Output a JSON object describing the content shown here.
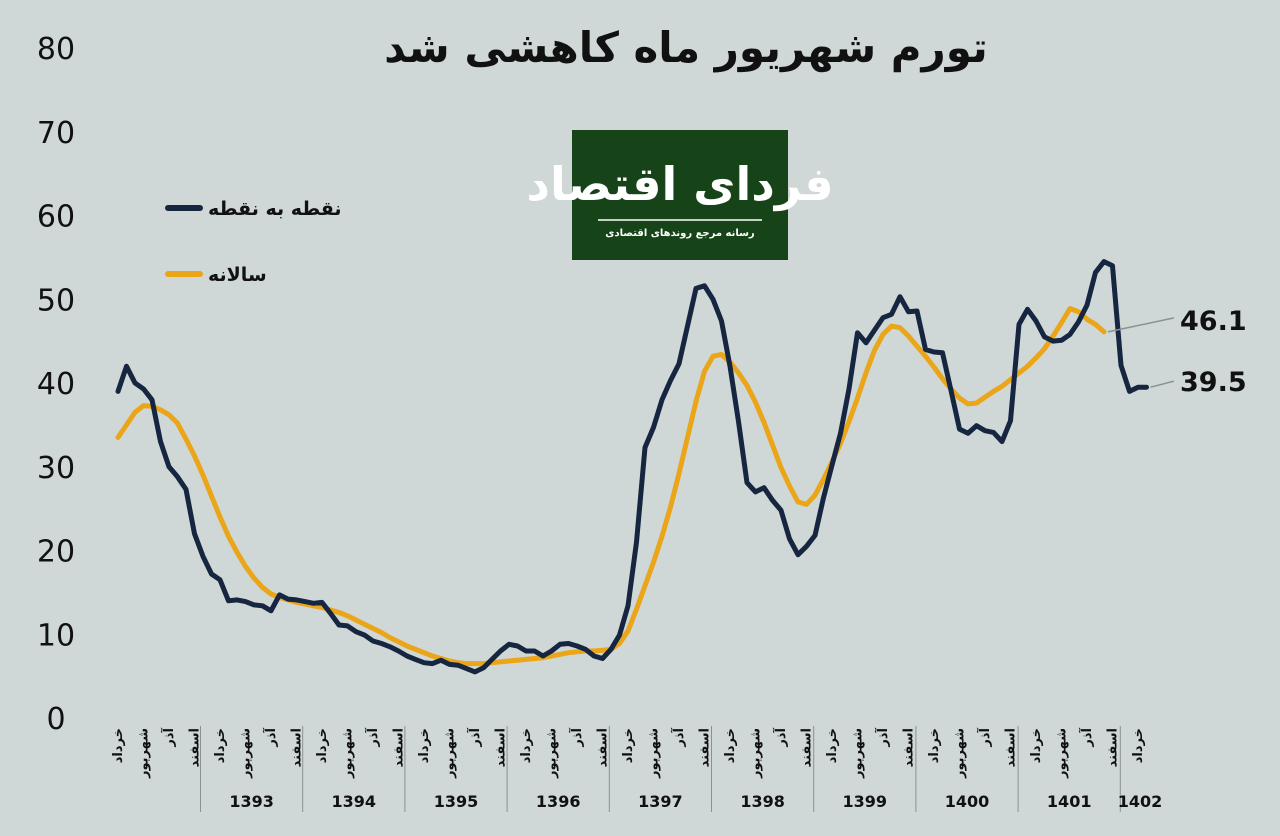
{
  "chart_data": {
    "type": "line",
    "title": "تورم شهریور ماه کاهشی شد",
    "ylim": [
      0,
      80
    ],
    "yticks": [
      {
        "value": 0,
        "label": "0"
      },
      {
        "value": 10,
        "label": "10"
      },
      {
        "value": 20,
        "label": "20"
      },
      {
        "value": 30,
        "label": "30"
      },
      {
        "value": 40,
        "label": "40"
      },
      {
        "value": 50,
        "label": "50"
      },
      {
        "value": 60,
        "label": "60"
      },
      {
        "value": 70,
        "label": "70"
      },
      {
        "value": 80,
        "label": "80"
      }
    ],
    "grid": false,
    "legend_position": "top-left",
    "years": [
      "1393",
      "1394",
      "1395",
      "1396",
      "1397",
      "1398",
      "1399",
      "1400",
      "1401",
      "1402"
    ],
    "month_labels": [
      "خرداد",
      "شهریور",
      "آذر",
      "اسفند"
    ],
    "series": [
      {
        "name": "نقطه به نقطه",
        "color": "#162640",
        "end_label": "39.5",
        "values": [
          39.0,
          42.0,
          40.0,
          39.3,
          38.0,
          33.0,
          30.0,
          28.8,
          27.3,
          22.0,
          19.3,
          17.2,
          16.5,
          14.0,
          14.1,
          13.9,
          13.5,
          13.4,
          12.8,
          14.7,
          14.2,
          14.1,
          13.9,
          13.7,
          13.8,
          12.5,
          11.1,
          11.0,
          10.3,
          9.9,
          9.2,
          8.9,
          8.5,
          8.0,
          7.4,
          7.0,
          6.6,
          6.5,
          6.9,
          6.4,
          6.3,
          5.9,
          5.5,
          6.0,
          7.0,
          8.0,
          8.8,
          8.6,
          8.0,
          8.0,
          7.4,
          8.0,
          8.8,
          8.9,
          8.6,
          8.2,
          7.4,
          7.1,
          8.2,
          9.9,
          13.4,
          21.0,
          32.3,
          34.7,
          38.0,
          40.3,
          42.3,
          46.8,
          51.3,
          51.6,
          50.0,
          47.4,
          42.0,
          35.4,
          28.1,
          27.0,
          27.5,
          26.0,
          24.8,
          21.4,
          19.5,
          20.5,
          21.8,
          26.3,
          30.2,
          34.0,
          39.3,
          46.0,
          44.8,
          46.3,
          47.8,
          48.2,
          50.3,
          48.5,
          48.6,
          44.0,
          43.7,
          43.6,
          39.1,
          34.5,
          34.0,
          34.9,
          34.3,
          34.1,
          33.0,
          35.5,
          47.0,
          48.8,
          47.4,
          45.5,
          45.0,
          45.1,
          45.8,
          47.3,
          49.3,
          53.2,
          54.5,
          54.0,
          42.1,
          39.0,
          39.5,
          39.5
        ]
      },
      {
        "name": "سالانه",
        "color": "#eaa519",
        "end_label": "46.1",
        "values": [
          33.5,
          35.0,
          36.5,
          37.3,
          37.2,
          36.8,
          36.2,
          35.2,
          33.3,
          31.3,
          29.0,
          26.5,
          24.0,
          21.7,
          19.8,
          18.1,
          16.7,
          15.6,
          14.8,
          14.4,
          14.1,
          13.8,
          13.6,
          13.4,
          13.2,
          12.9,
          12.6,
          12.2,
          11.7,
          11.2,
          10.7,
          10.2,
          9.6,
          9.1,
          8.6,
          8.2,
          7.8,
          7.4,
          7.1,
          6.8,
          6.6,
          6.5,
          6.5,
          6.5,
          6.6,
          6.7,
          6.8,
          6.9,
          7.0,
          7.1,
          7.2,
          7.4,
          7.6,
          7.8,
          7.9,
          8.0,
          8.0,
          8.1,
          8.2,
          8.9,
          10.4,
          13.0,
          15.8,
          18.6,
          21.7,
          25.2,
          29.2,
          33.5,
          37.8,
          41.4,
          43.2,
          43.4,
          42.5,
          41.2,
          39.7,
          37.7,
          35.3,
          32.6,
          29.9,
          27.7,
          25.8,
          25.5,
          26.6,
          28.5,
          30.6,
          32.8,
          35.4,
          38.2,
          41.2,
          43.9,
          45.8,
          46.8,
          46.6,
          45.6,
          44.4,
          43.2,
          41.9,
          40.5,
          39.3,
          38.2,
          37.5,
          37.6,
          38.3,
          39.0,
          39.6,
          40.4,
          41.2,
          42.0,
          43.0,
          44.1,
          45.6,
          47.2,
          48.9,
          48.5,
          47.6,
          47.0,
          46.1
        ]
      }
    ]
  },
  "logo": {
    "title": "فردای اقتصاد",
    "subtitle": "رسانه مرجع روندهای اقتصادی",
    "bg_color": "#174319",
    "text_color": "#ffffff"
  },
  "colors": {
    "background": "#cfd8d7",
    "text": "#111111"
  }
}
